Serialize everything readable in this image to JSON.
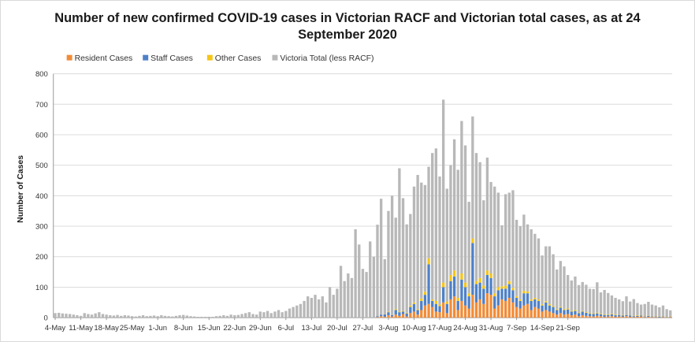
{
  "chart_data": {
    "type": "bar",
    "stacked": true,
    "title": "Number of new confirmed COVID-19 cases in Victorian RACF and Victorian total cases, as at 24 September 2020",
    "title_lines": [
      "Number of new confirmed COVID-19 cases in Victorian RACF and Victorian total cases, as at 24",
      "September 2020"
    ],
    "xlabel": "",
    "ylabel": "Number of Cases",
    "ylim": [
      0,
      800
    ],
    "yticks": [
      0,
      100,
      200,
      300,
      400,
      500,
      600,
      700,
      800
    ],
    "grid": true,
    "legend_position": "top",
    "start_date": "2020-05-04",
    "x_tick_labels": [
      "4-May",
      "11-May",
      "18-May",
      "25-May",
      "1-Jun",
      "8-Jun",
      "15-Jun",
      "22-Jun",
      "29-Jun",
      "6-Jul",
      "13-Jul",
      "20-Jul",
      "27-Jul",
      "3-Aug",
      "10-Aug",
      "17-Aug",
      "24-Aug",
      "31-Aug",
      "7-Sep",
      "14-Sep",
      "21-Sep"
    ],
    "colors": {
      "resident": "#f28c38",
      "staff": "#4f81c7",
      "other": "#f5c518",
      "victoria": "#b8b8b8"
    },
    "series": [
      {
        "name": "Resident Cases",
        "key": "resident",
        "values": [
          0,
          0,
          0,
          0,
          0,
          0,
          0,
          0,
          0,
          0,
          0,
          0,
          0,
          0,
          0,
          0,
          0,
          0,
          0,
          0,
          0,
          0,
          0,
          0,
          0,
          0,
          0,
          0,
          0,
          0,
          0,
          0,
          0,
          0,
          0,
          0,
          0,
          0,
          0,
          0,
          0,
          0,
          0,
          0,
          0,
          0,
          0,
          0,
          0,
          0,
          0,
          0,
          0,
          0,
          0,
          0,
          0,
          0,
          0,
          0,
          0,
          0,
          0,
          0,
          0,
          0,
          0,
          0,
          0,
          0,
          0,
          0,
          0,
          0,
          0,
          0,
          0,
          0,
          0,
          0,
          0,
          0,
          0,
          0,
          0,
          0,
          0,
          0,
          2,
          5,
          3,
          8,
          4,
          10,
          6,
          12,
          4,
          15,
          20,
          10,
          25,
          40,
          45,
          35,
          20,
          18,
          50,
          15,
          60,
          70,
          25,
          55,
          40,
          30,
          75,
          50,
          60,
          45,
          80,
          75,
          30,
          40,
          60,
          55,
          65,
          50,
          35,
          30,
          40,
          45,
          25,
          35,
          30,
          20,
          25,
          20,
          15,
          10,
          15,
          10,
          12,
          8,
          10,
          5,
          8,
          6,
          5,
          4,
          6,
          5,
          3,
          4,
          5,
          3,
          4,
          3,
          5,
          3,
          2,
          3,
          4,
          2,
          3,
          2,
          2,
          1,
          2,
          1,
          2
        ]
      },
      {
        "name": "Staff Cases",
        "key": "staff",
        "values": [
          0,
          0,
          0,
          0,
          0,
          0,
          0,
          0,
          0,
          0,
          0,
          0,
          0,
          0,
          0,
          0,
          0,
          0,
          0,
          0,
          0,
          0,
          0,
          0,
          0,
          0,
          0,
          0,
          0,
          0,
          0,
          0,
          0,
          0,
          0,
          0,
          0,
          0,
          0,
          0,
          0,
          0,
          0,
          0,
          0,
          0,
          0,
          0,
          0,
          0,
          0,
          0,
          0,
          0,
          0,
          0,
          0,
          0,
          0,
          0,
          0,
          0,
          0,
          0,
          0,
          0,
          0,
          0,
          0,
          0,
          0,
          0,
          0,
          0,
          0,
          0,
          0,
          0,
          0,
          0,
          0,
          0,
          0,
          0,
          0,
          0,
          0,
          0,
          3,
          5,
          8,
          10,
          5,
          15,
          12,
          8,
          10,
          20,
          25,
          15,
          30,
          35,
          130,
          20,
          25,
          20,
          50,
          30,
          60,
          65,
          30,
          70,
          60,
          40,
          170,
          60,
          55,
          50,
          60,
          55,
          40,
          50,
          35,
          40,
          45,
          40,
          30,
          25,
          40,
          35,
          30,
          25,
          25,
          20,
          25,
          20,
          20,
          15,
          18,
          15,
          15,
          12,
          12,
          10,
          12,
          10,
          8,
          8,
          8,
          6,
          6,
          5,
          6,
          5,
          5,
          4,
          4,
          4,
          3,
          3,
          3,
          2,
          3,
          2,
          2,
          2,
          2,
          1,
          1
        ]
      },
      {
        "name": "Other Cases",
        "key": "other",
        "values": [
          0,
          0,
          0,
          0,
          0,
          0,
          0,
          0,
          0,
          0,
          0,
          0,
          0,
          0,
          0,
          0,
          0,
          0,
          0,
          0,
          0,
          0,
          0,
          0,
          0,
          0,
          0,
          0,
          0,
          0,
          0,
          0,
          0,
          0,
          0,
          0,
          0,
          0,
          0,
          0,
          0,
          0,
          0,
          0,
          0,
          0,
          0,
          0,
          0,
          0,
          0,
          0,
          0,
          0,
          0,
          0,
          0,
          0,
          0,
          0,
          0,
          0,
          0,
          0,
          0,
          0,
          0,
          0,
          0,
          0,
          0,
          0,
          0,
          0,
          0,
          0,
          0,
          0,
          0,
          0,
          0,
          0,
          0,
          0,
          0,
          0,
          0,
          0,
          0,
          0,
          1,
          2,
          1,
          3,
          2,
          2,
          2,
          5,
          5,
          3,
          8,
          10,
          20,
          5,
          10,
          5,
          15,
          8,
          20,
          20,
          10,
          20,
          15,
          10,
          15,
          10,
          15,
          10,
          15,
          15,
          10,
          10,
          8,
          10,
          10,
          8,
          6,
          5,
          8,
          6,
          5,
          5,
          5,
          4,
          4,
          4,
          3,
          3,
          3,
          3,
          3,
          2,
          3,
          2,
          2,
          2,
          2,
          2,
          2,
          2,
          2,
          2,
          2,
          2,
          1,
          2,
          1,
          1,
          1,
          2,
          1,
          1,
          1,
          1,
          1,
          1,
          1,
          1,
          1
        ]
      },
      {
        "name": "Victoria Total (less RACF)",
        "key": "victoria",
        "values": [
          15,
          16,
          14,
          13,
          12,
          10,
          8,
          6,
          15,
          12,
          10,
          14,
          18,
          12,
          10,
          8,
          7,
          9,
          6,
          8,
          7,
          5,
          4,
          6,
          8,
          5,
          6,
          7,
          5,
          8,
          6,
          5,
          4,
          6,
          8,
          9,
          7,
          5,
          4,
          3,
          3,
          3,
          3,
          3,
          5,
          6,
          8,
          6,
          10,
          8,
          9,
          12,
          15,
          18,
          12,
          10,
          20,
          18,
          22,
          15,
          20,
          25,
          18,
          22,
          30,
          35,
          40,
          45,
          55,
          70,
          65,
          75,
          60,
          70,
          50,
          100,
          75,
          95,
          170,
          120,
          145,
          130,
          290,
          240,
          160,
          150,
          250,
          200,
          300,
          380,
          180,
          330,
          390,
          300,
          470,
          370,
          290,
          300,
          380,
          440,
          380,
          350,
          300,
          480,
          500,
          420,
          600,
          370,
          360,
          430,
          420,
          500,
          450,
          300,
          400,
          420,
          380,
          280,
          370,
          300,
          350,
          310,
          200,
          300,
          290,
          320,
          250,
          240,
          250,
          220,
          230,
          210,
          200,
          160,
          180,
          190,
          170,
          130,
          150,
          140,
          110,
          100,
          110,
          90,
          95,
          90,
          80,
          80,
          100,
          70,
          80,
          70,
          60,
          55,
          50,
          45,
          60,
          45,
          55,
          40,
          35,
          40,
          45,
          38,
          35,
          30,
          35,
          25,
          20
        ]
      }
    ]
  }
}
